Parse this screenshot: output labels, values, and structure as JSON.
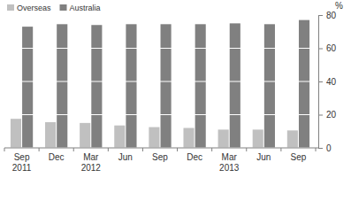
{
  "chart_data": {
    "type": "bar",
    "y_label": "%",
    "categories": [
      "Sep 2011",
      "Dec",
      "Mar 2012",
      "Jun",
      "Sep",
      "Dec",
      "Mar 2013",
      "Jun",
      "Sep"
    ],
    "series": [
      {
        "name": "Overseas",
        "color": "#c0c0c0",
        "values": [
          17.5,
          15.5,
          15,
          13.5,
          12.5,
          12,
          11,
          11,
          10.5
        ]
      },
      {
        "name": "Australia",
        "color": "#808080",
        "values": [
          73,
          74.5,
          74,
          74.5,
          74.5,
          74.5,
          75,
          74.5,
          77
        ]
      }
    ],
    "ylim": [
      0,
      80
    ],
    "yticks": [
      0,
      20,
      40,
      60,
      80
    ],
    "grid": true,
    "legend": "top-left"
  }
}
